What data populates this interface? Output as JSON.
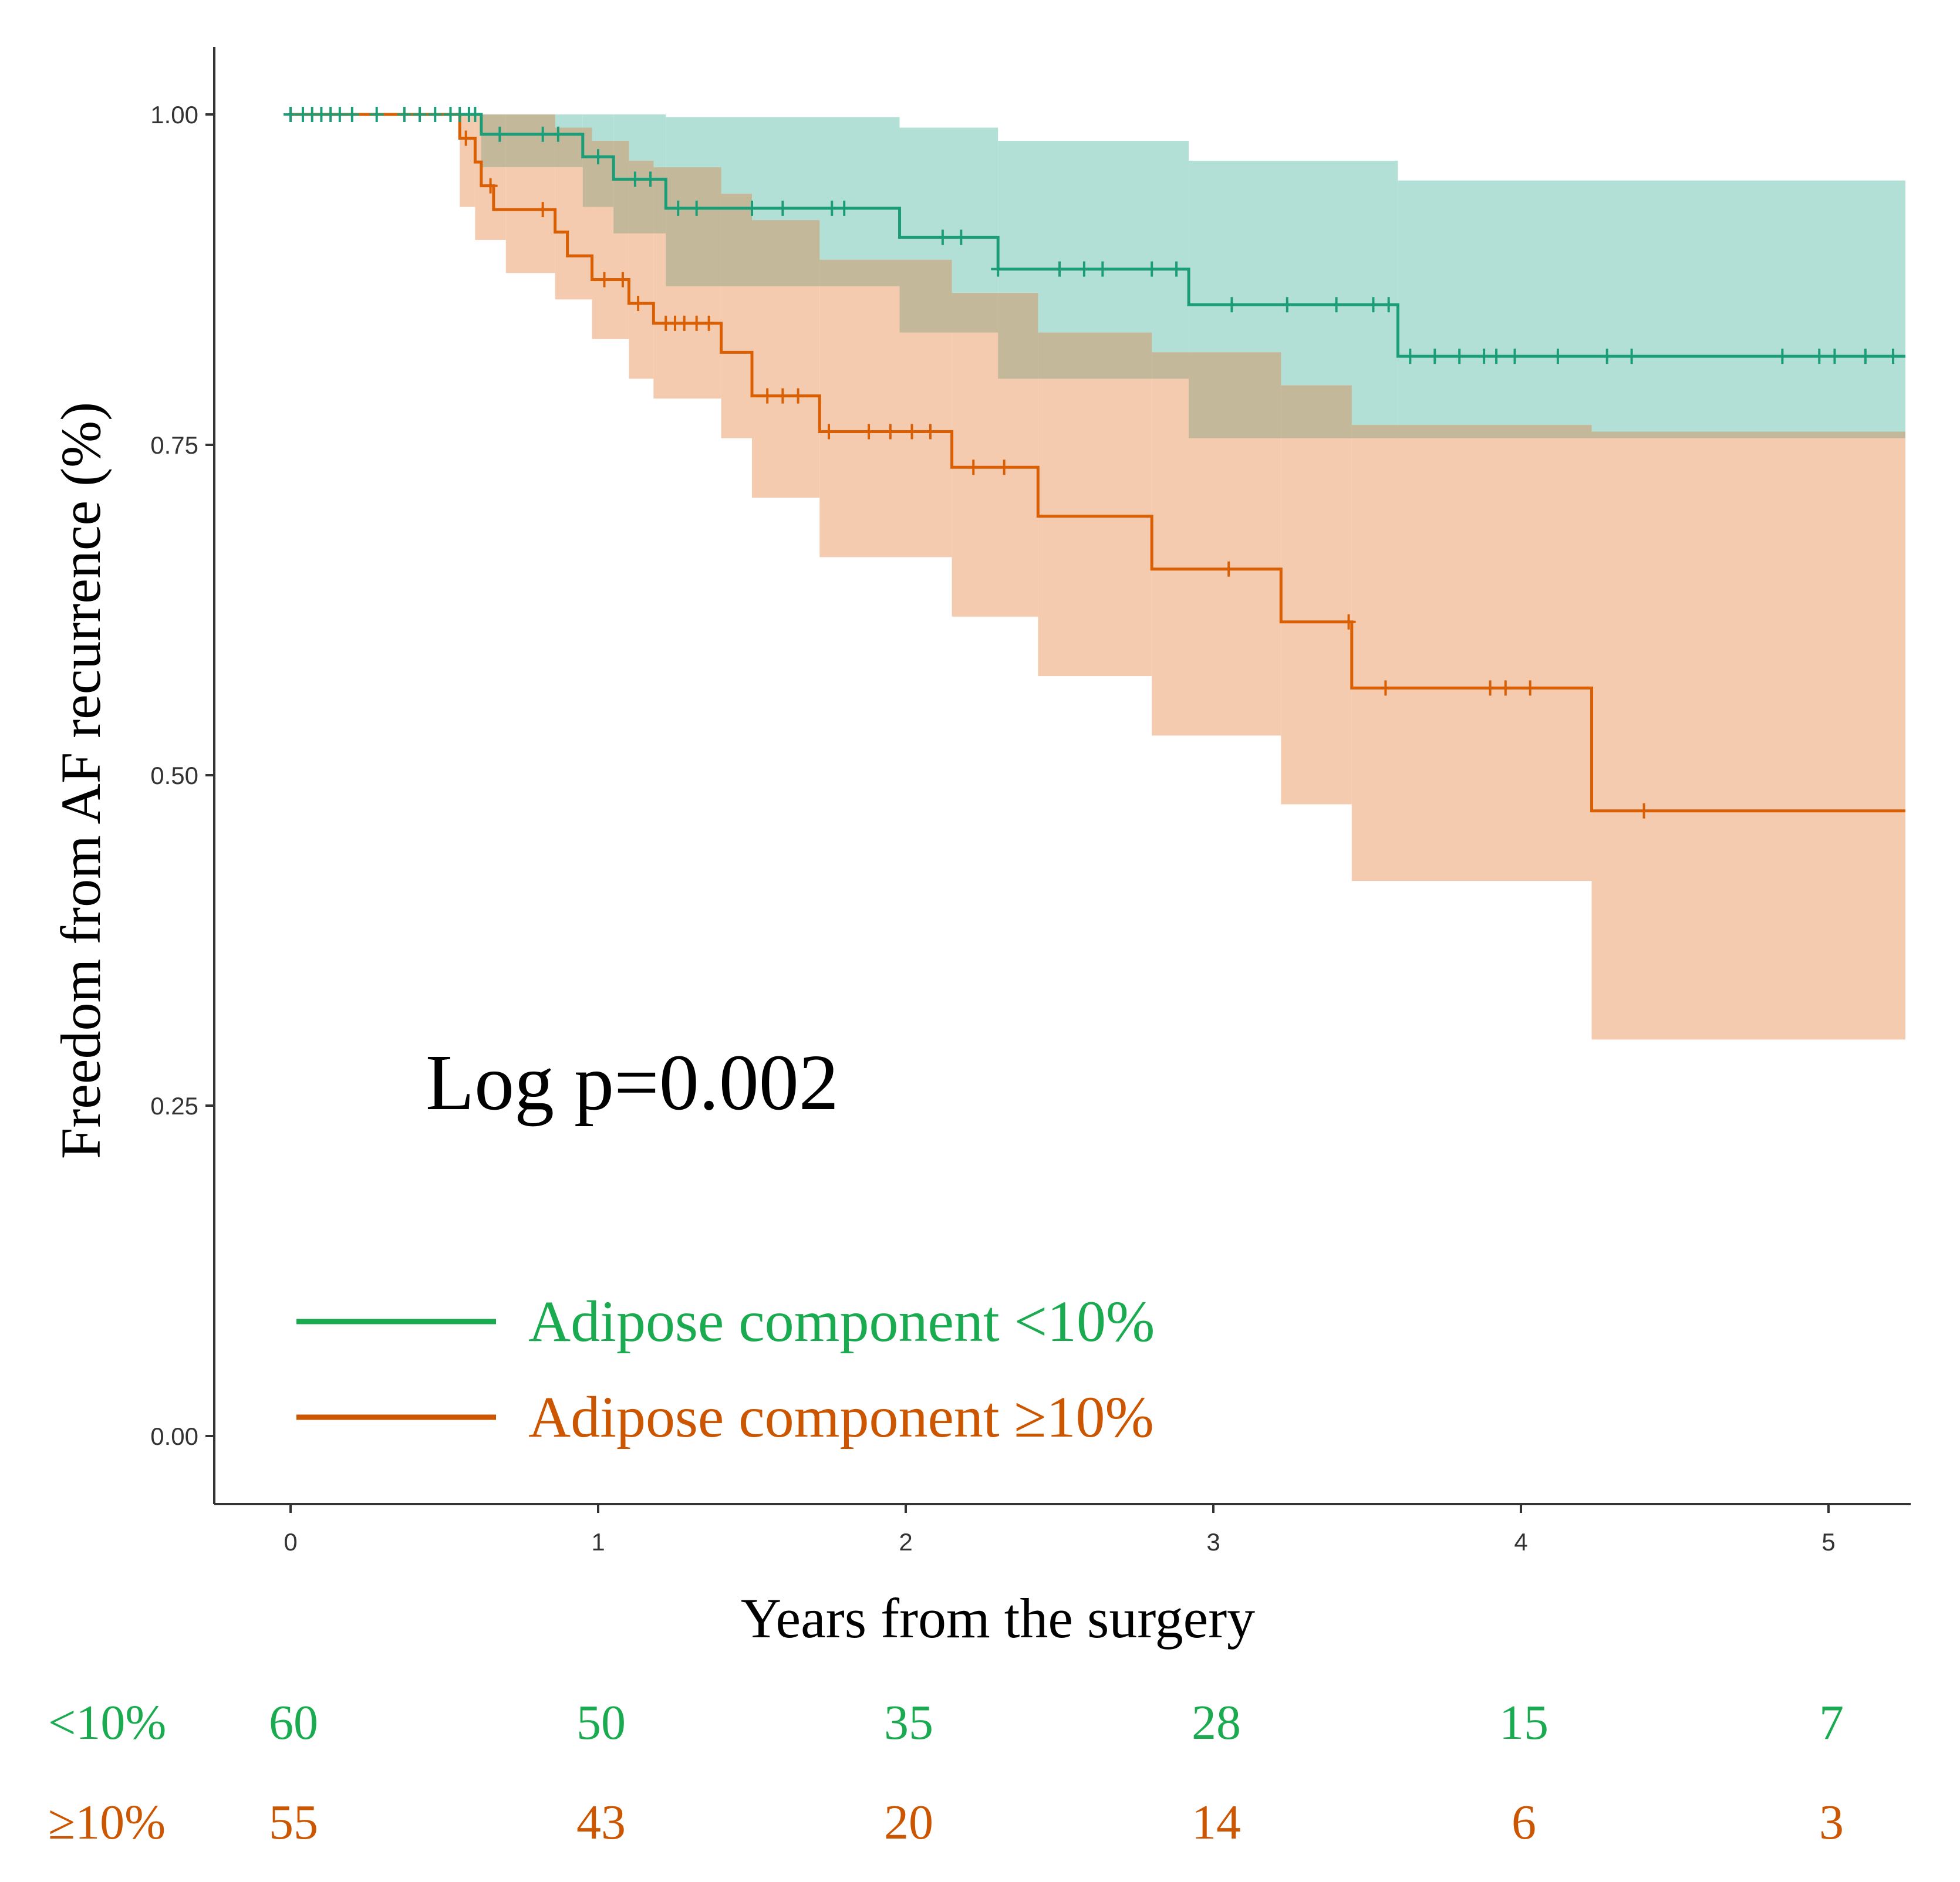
{
  "colors": {
    "green": "#1b9e77",
    "orange": "#d95f02",
    "green_band": "#b3e0d6",
    "orange_band": "#f5cbb0",
    "overlap_band": "#c3b99a",
    "label_green": "#1aab50",
    "label_orange": "#cc5500"
  },
  "chart_data": {
    "type": "line",
    "subtype": "kaplan-meier",
    "title": "",
    "xlabel": "Years from the surgery",
    "ylabel": "Freedom from AF recurrence (%)",
    "xlim": [
      -0.25,
      5.25
    ],
    "ylim": [
      -0.05,
      1.05
    ],
    "xticks": [
      0,
      1,
      2,
      3,
      4,
      5
    ],
    "xtick_labels": [
      "0",
      "1",
      "2",
      "3",
      "4",
      "5"
    ],
    "yticks": [
      0,
      0.25,
      0.5,
      0.75,
      1.0
    ],
    "ytick_labels": [
      "0.00",
      "0.25",
      "0.50",
      "0.75",
      "1.00"
    ],
    "annotation": "Log p=0.002",
    "legend": [
      "Adipose component <10%",
      "Adipose component ≥10%"
    ],
    "series": [
      {
        "name": "Adipose component <10%",
        "color": "green",
        "steps": [
          [
            0,
            1.0
          ],
          [
            0.62,
            0.985
          ],
          [
            0.95,
            0.968
          ],
          [
            1.05,
            0.951
          ],
          [
            1.22,
            0.929
          ],
          [
            1.98,
            0.907
          ],
          [
            2.3,
            0.883
          ],
          [
            2.92,
            0.856
          ],
          [
            3.6,
            0.817
          ],
          [
            5.25,
            0.817
          ]
        ],
        "ci_steps": [
          [
            0,
            1.0,
            1.0
          ],
          [
            0.62,
            0.96,
            1.0
          ],
          [
            0.95,
            0.93,
            1.0
          ],
          [
            1.05,
            0.91,
            1.0
          ],
          [
            1.22,
            0.87,
            0.998
          ],
          [
            1.98,
            0.835,
            0.99
          ],
          [
            2.3,
            0.8,
            0.98
          ],
          [
            2.92,
            0.755,
            0.965
          ],
          [
            3.6,
            0.755,
            0.95
          ],
          [
            4.25,
            0.755,
            0.95
          ],
          [
            5.25,
            0.755,
            0.95
          ]
        ],
        "censor_times": [
          0.0,
          0.04,
          0.07,
          0.1,
          0.13,
          0.16,
          0.2,
          0.28,
          0.37,
          0.42,
          0.47,
          0.52,
          0.55,
          0.58,
          0.6,
          0.68,
          0.82,
          0.87,
          1.0,
          1.12,
          1.17,
          1.26,
          1.32,
          1.5,
          1.6,
          1.76,
          1.8,
          2.12,
          2.18,
          2.3,
          2.5,
          2.58,
          2.64,
          2.8,
          2.88,
          3.06,
          3.24,
          3.4,
          3.52,
          3.57,
          3.64,
          3.72,
          3.8,
          3.88,
          3.92,
          3.98,
          4.12,
          4.28,
          4.36,
          4.85,
          4.97,
          5.02,
          5.12,
          5.21
        ]
      },
      {
        "name": "Adipose component ≥10%",
        "color": "orange",
        "steps": [
          [
            0,
            1.0
          ],
          [
            0.55,
            0.982
          ],
          [
            0.6,
            0.964
          ],
          [
            0.62,
            0.946
          ],
          [
            0.66,
            0.928
          ],
          [
            0.86,
            0.911
          ],
          [
            0.9,
            0.893
          ],
          [
            0.98,
            0.875
          ],
          [
            1.1,
            0.857
          ],
          [
            1.18,
            0.842
          ],
          [
            1.4,
            0.82
          ],
          [
            1.5,
            0.787
          ],
          [
            1.72,
            0.76
          ],
          [
            2.15,
            0.733
          ],
          [
            2.43,
            0.696
          ],
          [
            2.8,
            0.656
          ],
          [
            3.22,
            0.616
          ],
          [
            3.45,
            0.566
          ],
          [
            4.23,
            0.473
          ],
          [
            5.25,
            0.473
          ]
        ],
        "ci_steps": [
          [
            0,
            1.0,
            1.0
          ],
          [
            0.55,
            0.93,
            1.0
          ],
          [
            0.6,
            0.905,
            1.0
          ],
          [
            0.7,
            0.88,
            1.0
          ],
          [
            0.86,
            0.86,
            0.99
          ],
          [
            0.98,
            0.83,
            0.98
          ],
          [
            1.1,
            0.8,
            0.965
          ],
          [
            1.18,
            0.785,
            0.96
          ],
          [
            1.4,
            0.755,
            0.94
          ],
          [
            1.5,
            0.71,
            0.92
          ],
          [
            1.72,
            0.665,
            0.89
          ],
          [
            2.15,
            0.62,
            0.865
          ],
          [
            2.43,
            0.575,
            0.835
          ],
          [
            2.8,
            0.53,
            0.82
          ],
          [
            3.22,
            0.478,
            0.795
          ],
          [
            3.45,
            0.42,
            0.765
          ],
          [
            4.23,
            0.3,
            0.76
          ],
          [
            5.25,
            0.3,
            0.76
          ]
        ],
        "censor_times": [
          0.57,
          0.65,
          0.82,
          1.02,
          1.08,
          1.13,
          1.22,
          1.25,
          1.28,
          1.32,
          1.36,
          1.55,
          1.6,
          1.65,
          1.75,
          1.88,
          1.95,
          2.02,
          2.08,
          2.22,
          2.32,
          3.05,
          3.44,
          3.56,
          3.9,
          3.95,
          4.03,
          4.4
        ]
      }
    ],
    "risk_table": {
      "times": [
        0,
        1,
        2,
        3,
        4,
        5
      ],
      "rows": [
        {
          "label": "<10%",
          "color": "label_green",
          "values": [
            "60",
            "50",
            "35",
            "28",
            "15",
            "7"
          ]
        },
        {
          "label": "≥10%",
          "color": "label_orange",
          "values": [
            "55",
            "43",
            "20",
            "14",
            "6",
            "3"
          ]
        }
      ]
    }
  }
}
